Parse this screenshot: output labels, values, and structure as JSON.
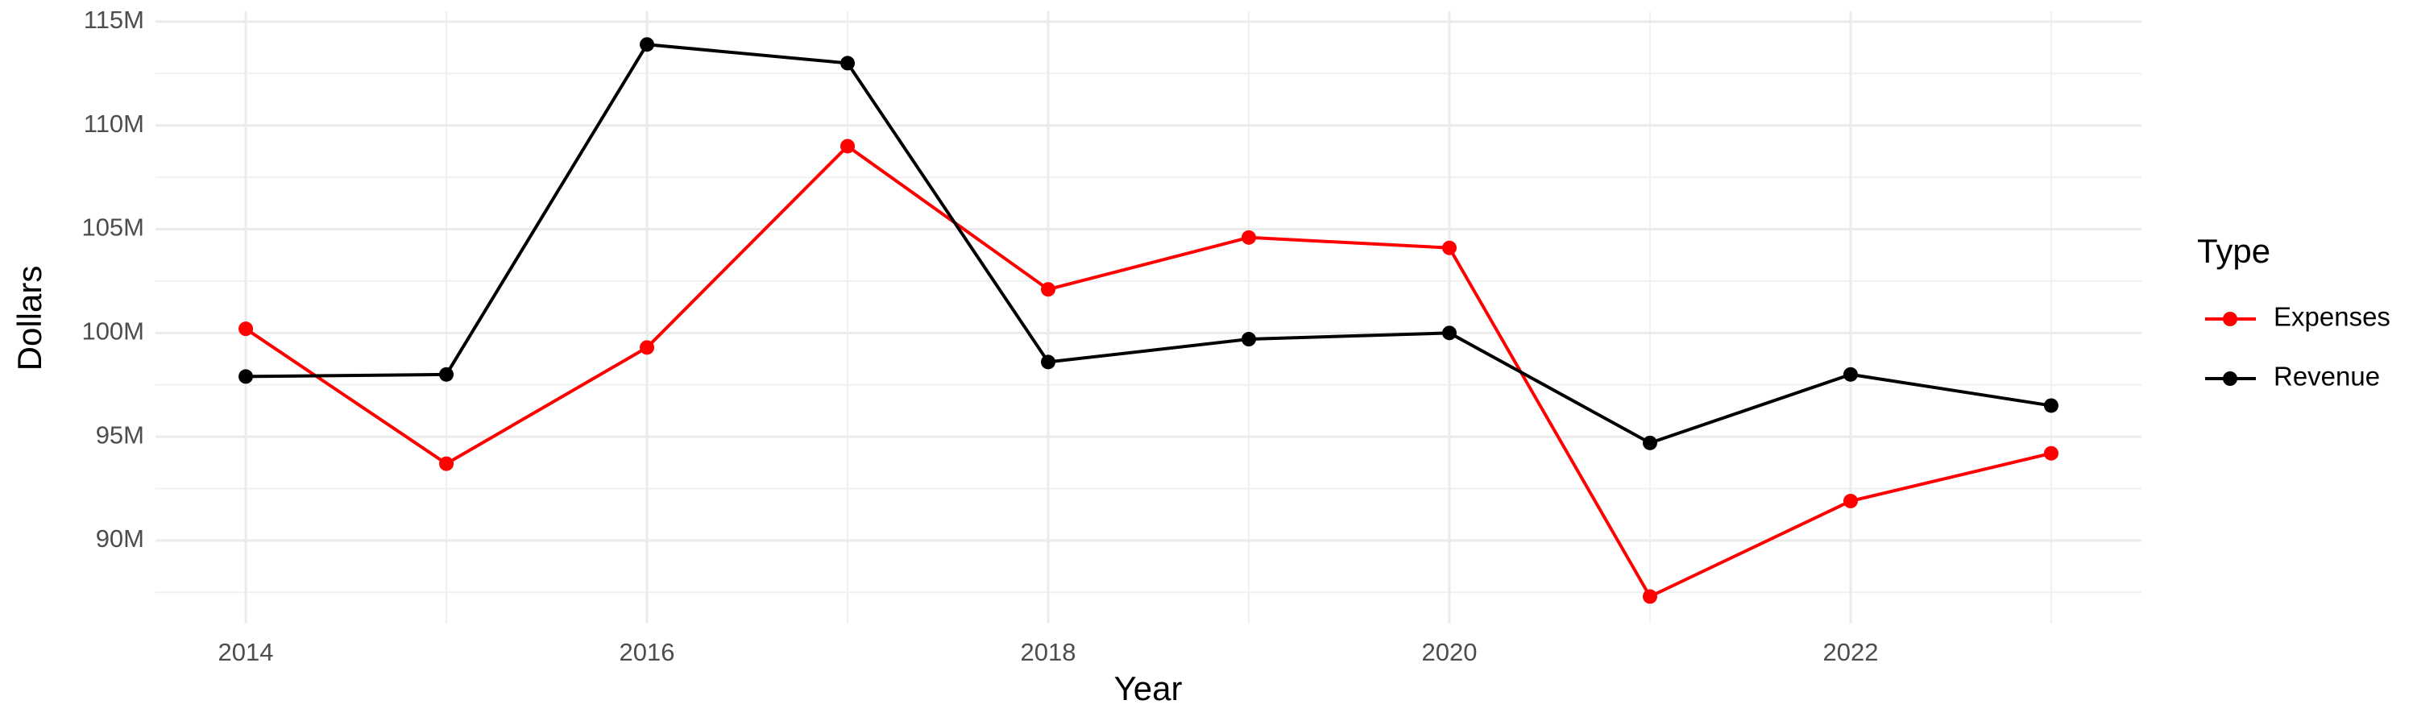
{
  "chart_data": {
    "type": "line",
    "x_label": "Year",
    "y_label": "Dollars",
    "legend_title": "Type",
    "legend": "right",
    "grid": true,
    "x": [
      2014,
      2015,
      2016,
      2017,
      2018,
      2019,
      2020,
      2021,
      2022,
      2023
    ],
    "series": [
      {
        "name": "Expenses",
        "color": "#ff0000",
        "values": [
          100200000,
          93700000,
          99300000,
          109000000,
          102100000,
          104600000,
          104100000,
          87300000,
          91900000,
          94200000
        ]
      },
      {
        "name": "Revenue",
        "color": "#000000",
        "values": [
          97900000,
          98000000,
          113900000,
          113000000,
          98600000,
          99700000,
          100000000,
          94700000,
          98000000,
          96500000
        ]
      }
    ],
    "xlim": [
      2013.55,
      2023.45
    ],
    "xticks": [
      2014,
      2016,
      2018,
      2020,
      2022
    ],
    "ylim": [
      86000000,
      115500000
    ],
    "yticks": [
      {
        "value": 90000000,
        "label": "90M"
      },
      {
        "value": 95000000,
        "label": "95M"
      },
      {
        "value": 100000000,
        "label": "100M"
      },
      {
        "value": 105000000,
        "label": "105M"
      },
      {
        "value": 110000000,
        "label": "110M"
      },
      {
        "value": 115000000,
        "label": "115M"
      }
    ]
  }
}
